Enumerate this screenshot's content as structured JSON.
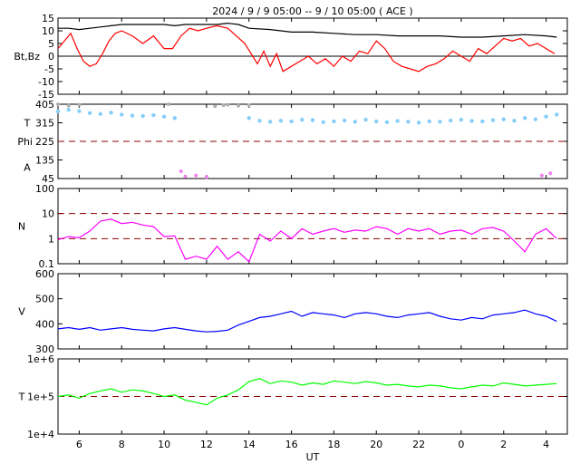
{
  "title": "2024 /  9 /  9   05:00 -- 9 / 10   05:00 ( ACE )",
  "x_axis": {
    "label": "UT",
    "ticks": [
      "6",
      "8",
      "10",
      "12",
      "14",
      "16",
      "18",
      "20",
      "22",
      "0",
      "2",
      "4"
    ],
    "tick_hours": [
      6,
      8,
      10,
      12,
      14,
      16,
      18,
      20,
      22,
      24,
      26,
      28
    ],
    "range": [
      5,
      29
    ]
  },
  "panels": [
    {
      "id": "mag",
      "ylabel": "Bt,Bz",
      "yticks": [
        "15",
        "10",
        "5",
        "0",
        "-5",
        "-10",
        "-15"
      ],
      "ytick_values": [
        15,
        10,
        5,
        0,
        -5,
        -10,
        -15
      ],
      "ylim": [
        -15,
        15
      ],
      "zero_line": 0
    },
    {
      "id": "angles",
      "ylabels": [
        "T",
        "Phi",
        "A"
      ],
      "yticks": [
        "405",
        "315",
        "225",
        "135",
        "45"
      ],
      "ytick_values": [
        405,
        315,
        225,
        135,
        45
      ],
      "ylim": [
        45,
        405
      ],
      "ref_line": 225
    },
    {
      "id": "density",
      "ylabel": "N",
      "yticks": [
        "100",
        "10",
        "1",
        "0.1"
      ],
      "ytick_values": [
        100,
        10,
        1,
        0.1
      ],
      "ylim": [
        0.1,
        100
      ],
      "scale": "log",
      "ref_lines": [
        10,
        1
      ]
    },
    {
      "id": "speed",
      "ylabel": "V",
      "yticks": [
        "600",
        "500",
        "400",
        "300"
      ],
      "ytick_values": [
        600,
        500,
        400,
        300
      ],
      "ylim": [
        300,
        600
      ]
    },
    {
      "id": "temp",
      "ylabel": "T",
      "yticks": [
        "1e+6",
        "1e+5",
        "1e+4"
      ],
      "ytick_values": [
        1000000,
        100000,
        10000
      ],
      "ylim": [
        10000,
        1000000
      ],
      "scale": "log",
      "ref_line": 100000
    }
  ],
  "colors": {
    "bt": "#000000",
    "bz": "#ff0000",
    "theta": "#87cefa",
    "phi_gray": "#b0b0b0",
    "phi_pink": "#ee82ee",
    "density": "#ff00ff",
    "speed": "#0000ff",
    "temperature": "#00ff00",
    "reference": "#8b0000"
  },
  "chart_data": [
    {
      "type": "line",
      "title": "",
      "xlabel": "",
      "ylabel": "Bt,Bz",
      "ylim": [
        -15,
        15
      ],
      "series": [
        {
          "x": [
            5,
            5.5,
            6,
            6.5,
            7,
            7.5,
            8,
            9,
            10,
            10.5,
            11,
            12,
            12.5,
            13,
            13.5,
            14,
            15,
            16,
            17,
            18,
            19,
            20,
            21,
            22,
            23,
            24,
            25,
            26,
            27,
            28,
            28.5
          ],
          "values": [
            11,
            11,
            10.5,
            11,
            11.5,
            12,
            12.5,
            12.5,
            12.5,
            12,
            12.5,
            12.5,
            12.5,
            13,
            12.5,
            11,
            10.5,
            9.5,
            9.5,
            9,
            8.5,
            8.5,
            8,
            8,
            8,
            7.5,
            7.5,
            8,
            8.5,
            8,
            7.5
          ]
        },
        {
          "x": [
            5,
            5.3,
            5.6,
            5.9,
            6.2,
            6.5,
            6.8,
            7.1,
            7.4,
            7.7,
            8,
            8.5,
            9,
            9.5,
            10,
            10.4,
            10.8,
            11.2,
            11.6,
            12,
            12.5,
            13,
            13.4,
            13.8,
            14.1,
            14.4,
            14.7,
            15,
            15.3,
            15.6,
            16,
            16.4,
            16.8,
            17.2,
            17.6,
            18,
            18.4,
            18.8,
            19.2,
            19.6,
            20,
            20.4,
            20.8,
            21.2,
            21.6,
            22,
            22.4,
            22.8,
            23.2,
            23.6,
            24,
            24.4,
            24.8,
            25.2,
            25.6,
            26,
            26.4,
            26.8,
            27.2,
            27.6,
            28,
            28.4
          ],
          "values": [
            3,
            6,
            9,
            3,
            -2,
            -4,
            -3,
            1,
            6,
            9,
            10,
            8,
            5,
            8,
            3,
            3,
            8,
            11,
            10,
            11,
            12,
            11,
            8,
            5,
            1,
            -3,
            2,
            -4,
            1,
            -6,
            -4,
            -2,
            0,
            -3,
            -1,
            -4,
            0,
            -2,
            2,
            1,
            6,
            3,
            -2,
            -4,
            -5,
            -6,
            -4,
            -3,
            -1,
            2,
            0,
            -2,
            3,
            1,
            4,
            7,
            6,
            7,
            4,
            5,
            3,
            1
          ]
        }
      ]
    },
    {
      "type": "scatter",
      "title": "",
      "xlabel": "",
      "ylabel": "T / Phi / A",
      "ylim": [
        45,
        405
      ],
      "series": [
        {
          "x": [
            5,
            5.5,
            6,
            6.5,
            7,
            7.5,
            8,
            8.5,
            9,
            9.5,
            10,
            10.5,
            14,
            14.5,
            15,
            15.5,
            16,
            16.5,
            17,
            17.5,
            18,
            18.5,
            19,
            19.5,
            20,
            20.5,
            21,
            21.5,
            22,
            22.5,
            23,
            23.5,
            24,
            24.5,
            25,
            25.5,
            26,
            26.5,
            27,
            27.5,
            28,
            28.5
          ],
          "values": [
            370,
            378,
            372,
            362,
            358,
            364,
            355,
            350,
            348,
            352,
            345,
            338,
            338,
            325,
            320,
            325,
            322,
            330,
            328,
            318,
            322,
            326,
            320,
            330,
            322,
            318,
            324,
            320,
            316,
            322,
            320,
            326,
            330,
            324,
            322,
            328,
            332,
            325,
            338,
            332,
            345,
            355
          ]
        },
        {
          "x": [
            5,
            5.5,
            6,
            10.2,
            10.8,
            11,
            11.5,
            12,
            12.4,
            12.8,
            13,
            13.5,
            14,
            27.8,
            28.2
          ],
          "values": [
            405,
            398,
            402,
            405,
            80,
            55,
            60,
            52,
            395,
            400,
            402,
            398,
            400,
            60,
            70
          ]
        }
      ]
    },
    {
      "type": "line",
      "title": "",
      "xlabel": "",
      "ylabel": "N",
      "ylim": [
        0.1,
        100
      ],
      "scale": "log",
      "series": [
        {
          "x": [
            5,
            5.5,
            6,
            6.5,
            7,
            7.5,
            8,
            8.5,
            9,
            9.5,
            10,
            10.5,
            11,
            11.5,
            12,
            12.5,
            13,
            13.5,
            14,
            14.5,
            15,
            15.5,
            16,
            16.5,
            17,
            17.5,
            18,
            18.5,
            19,
            19.5,
            20,
            20.5,
            21,
            21.5,
            22,
            22.5,
            23,
            23.5,
            24,
            24.5,
            25,
            25.5,
            26,
            26.5,
            27,
            27.5,
            28,
            28.5
          ],
          "values": [
            0.9,
            1.2,
            1.1,
            2,
            5,
            6,
            4,
            4.5,
            3.5,
            3,
            1.2,
            1.3,
            0.15,
            0.2,
            0.15,
            0.5,
            0.15,
            0.3,
            0.12,
            1.5,
            0.8,
            2,
            1,
            2.5,
            1.5,
            2,
            2.5,
            1.8,
            2.2,
            2,
            3,
            2.5,
            1.5,
            2.5,
            2,
            2.5,
            1.5,
            2,
            2.2,
            1.5,
            2.5,
            2.8,
            2,
            0.8,
            0.3,
            1.5,
            2.5,
            1
          ]
        }
      ]
    },
    {
      "type": "line",
      "title": "",
      "xlabel": "",
      "ylabel": "V",
      "ylim": [
        300,
        600
      ],
      "series": [
        {
          "x": [
            5,
            5.5,
            6,
            6.5,
            7,
            7.5,
            8,
            8.5,
            9,
            9.5,
            10,
            10.5,
            11,
            11.5,
            12,
            12.5,
            13,
            13.5,
            14,
            14.5,
            15,
            15.5,
            16,
            16.5,
            17,
            17.5,
            18,
            18.5,
            19,
            19.5,
            20,
            20.5,
            21,
            21.5,
            22,
            22.5,
            23,
            23.5,
            24,
            24.5,
            25,
            25.5,
            26,
            26.5,
            27,
            27.5,
            28,
            28.5
          ],
          "values": [
            380,
            385,
            378,
            385,
            375,
            380,
            385,
            378,
            375,
            372,
            380,
            385,
            378,
            372,
            368,
            370,
            375,
            395,
            410,
            425,
            430,
            440,
            450,
            430,
            445,
            440,
            435,
            425,
            440,
            445,
            440,
            430,
            425,
            435,
            440,
            445,
            430,
            420,
            415,
            425,
            420,
            435,
            440,
            445,
            455,
            440,
            430,
            410
          ]
        }
      ]
    },
    {
      "type": "line",
      "title": "",
      "xlabel": "UT",
      "ylabel": "T",
      "ylim": [
        10000,
        1000000
      ],
      "scale": "log",
      "series": [
        {
          "x": [
            5,
            5.5,
            6,
            6.5,
            7,
            7.5,
            8,
            8.5,
            9,
            9.5,
            10,
            10.5,
            11,
            11.5,
            12,
            12.5,
            13,
            13.5,
            14,
            14.5,
            15,
            15.5,
            16,
            16.5,
            17,
            17.5,
            18,
            18.5,
            19,
            19.5,
            20,
            20.5,
            21,
            21.5,
            22,
            22.5,
            23,
            23.5,
            24,
            24.5,
            25,
            25.5,
            26,
            26.5,
            27,
            27.5,
            28,
            28.5
          ],
          "values": [
            100000,
            110000,
            90000,
            120000,
            140000,
            160000,
            130000,
            150000,
            140000,
            120000,
            100000,
            110000,
            80000,
            70000,
            60000,
            90000,
            110000,
            150000,
            250000,
            300000,
            220000,
            260000,
            240000,
            200000,
            230000,
            210000,
            260000,
            240000,
            220000,
            250000,
            230000,
            200000,
            210000,
            190000,
            180000,
            200000,
            190000,
            170000,
            160000,
            180000,
            200000,
            190000,
            230000,
            210000,
            190000,
            200000,
            210000,
            220000
          ]
        }
      ]
    }
  ]
}
